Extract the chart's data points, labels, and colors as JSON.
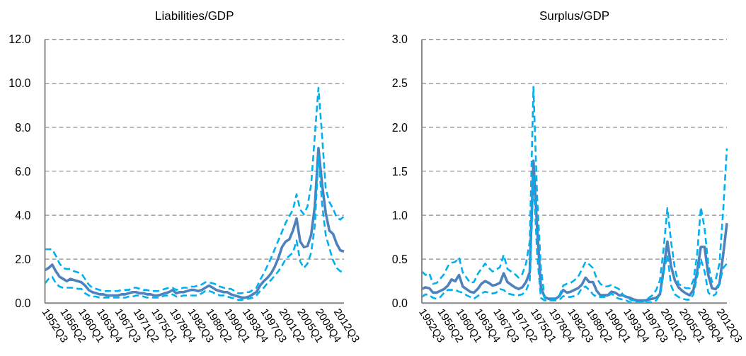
{
  "chart_data": [
    {
      "type": "line",
      "title": "Liabilities/GDP",
      "categories": [
        "1952Q3",
        null,
        null,
        null,
        null,
        "1956Q2",
        null,
        null,
        null,
        null,
        "1960Q1",
        null,
        null,
        null,
        null,
        "1963Q4",
        null,
        null,
        null,
        null,
        "1967Q3",
        null,
        null,
        null,
        null,
        "1971Q2",
        null,
        null,
        null,
        null,
        "1975Q1",
        null,
        null,
        null,
        null,
        "1978Q4",
        null,
        null,
        null,
        null,
        "1982Q3",
        null,
        null,
        null,
        null,
        "1986Q2",
        null,
        null,
        null,
        null,
        "1990Q1",
        null,
        null,
        null,
        null,
        "1993Q4",
        null,
        null,
        null,
        null,
        "1997Q3",
        null,
        null,
        null,
        null,
        "2001Q2",
        null,
        null,
        null,
        null,
        "2005Q1",
        null,
        null,
        null,
        null,
        "2008Q4",
        null,
        null,
        null,
        null,
        "2012Q3",
        null,
        null
      ],
      "series": [
        {
          "color": "#4f81bd",
          "line_style": "solid",
          "values": [
            1.5,
            1.6,
            1.75,
            1.45,
            1.2,
            1.1,
            1.0,
            1.1,
            1.05,
            1.0,
            0.95,
            0.8,
            0.6,
            0.5,
            0.45,
            0.4,
            0.4,
            0.35,
            0.35,
            0.35,
            0.35,
            0.4,
            0.4,
            0.45,
            0.5,
            0.5,
            0.45,
            0.45,
            0.4,
            0.4,
            0.35,
            0.35,
            0.4,
            0.45,
            0.5,
            0.6,
            0.45,
            0.5,
            0.5,
            0.55,
            0.6,
            0.6,
            0.55,
            0.6,
            0.7,
            0.8,
            0.7,
            0.6,
            0.55,
            0.5,
            0.5,
            0.4,
            0.35,
            0.3,
            0.25,
            0.25,
            0.3,
            0.4,
            0.5,
            0.8,
            1.0,
            1.15,
            1.35,
            1.65,
            2.05,
            2.55,
            2.8,
            2.9,
            3.3,
            3.85,
            2.8,
            2.55,
            2.6,
            3.1,
            4.4,
            7.05,
            5.4,
            4.1,
            3.3,
            3.15,
            2.7,
            2.4,
            2.35
          ]
        },
        {
          "color": "#00b0f0",
          "line_style": "dashed",
          "values": [
            2.45,
            2.45,
            2.45,
            2.15,
            1.8,
            1.6,
            1.55,
            1.55,
            1.45,
            1.4,
            1.35,
            1.1,
            0.85,
            0.7,
            0.65,
            0.6,
            0.55,
            0.55,
            0.55,
            0.55,
            0.55,
            0.6,
            0.6,
            0.6,
            0.7,
            0.7,
            0.65,
            0.6,
            0.6,
            0.55,
            0.55,
            0.55,
            0.6,
            0.65,
            0.7,
            0.7,
            0.6,
            0.65,
            0.7,
            0.7,
            0.75,
            0.75,
            0.8,
            0.85,
            0.95,
            0.95,
            0.9,
            0.85,
            0.75,
            0.7,
            0.65,
            0.65,
            0.55,
            0.45,
            0.45,
            0.5,
            0.5,
            0.6,
            0.7,
            1.05,
            1.35,
            1.7,
            2.05,
            2.45,
            2.85,
            3.25,
            3.65,
            3.95,
            4.25,
            4.95,
            4.25,
            4.05,
            4.4,
            5.4,
            7.6,
            9.8,
            7.6,
            5.2,
            4.6,
            4.3,
            3.9,
            3.8,
            3.95
          ]
        },
        {
          "color": "#00b0f0",
          "line_style": "dashed",
          "values": [
            0.9,
            1.1,
            1.2,
            0.9,
            0.75,
            0.7,
            0.7,
            0.7,
            0.7,
            0.65,
            0.65,
            0.45,
            0.35,
            0.3,
            0.3,
            0.25,
            0.25,
            0.25,
            0.25,
            0.25,
            0.25,
            0.25,
            0.25,
            0.3,
            0.3,
            0.35,
            0.35,
            0.3,
            0.25,
            0.25,
            0.25,
            0.25,
            0.3,
            0.35,
            0.35,
            0.4,
            0.3,
            0.3,
            0.35,
            0.35,
            0.35,
            0.35,
            0.35,
            0.45,
            0.55,
            0.55,
            0.5,
            0.4,
            0.35,
            0.35,
            0.3,
            0.25,
            0.2,
            0.15,
            0.15,
            0.2,
            0.2,
            0.25,
            0.35,
            0.55,
            0.7,
            0.9,
            1.05,
            1.25,
            1.45,
            1.7,
            2.0,
            2.15,
            2.3,
            2.85,
            1.9,
            1.6,
            1.8,
            2.3,
            3.5,
            6.7,
            4.5,
            3.1,
            2.5,
            1.95,
            1.6,
            1.45,
            1.4
          ]
        }
      ],
      "ylim": [
        0,
        12
      ],
      "yticks": [
        {
          "value": 0,
          "label": "0.0"
        },
        {
          "value": 2,
          "label": "2.0"
        },
        {
          "value": 4,
          "label": "4.0"
        },
        {
          "value": 6,
          "label": "6.0"
        },
        {
          "value": 8,
          "label": "8.0"
        },
        {
          "value": 10,
          "label": "10.0"
        },
        {
          "value": 12,
          "label": "12.0"
        }
      ],
      "grid": "y"
    },
    {
      "type": "line",
      "title": "Surplus/GDP",
      "categories": [
        "1952Q3",
        null,
        null,
        null,
        null,
        "1956Q2",
        null,
        null,
        null,
        null,
        "1960Q1",
        null,
        null,
        null,
        null,
        "1963Q4",
        null,
        null,
        null,
        null,
        "1967Q3",
        null,
        null,
        null,
        null,
        "1971Q2",
        null,
        null,
        null,
        null,
        "1975Q1",
        null,
        null,
        null,
        null,
        "1978Q4",
        null,
        null,
        null,
        null,
        "1982Q3",
        null,
        null,
        null,
        null,
        "1986Q2",
        null,
        null,
        null,
        null,
        "1990Q1",
        null,
        null,
        null,
        null,
        "1993Q4",
        null,
        null,
        null,
        null,
        "1997Q3",
        null,
        null,
        null,
        null,
        "2001Q2",
        null,
        null,
        null,
        null,
        "2005Q1",
        null,
        null,
        null,
        null,
        "2008Q4",
        null,
        null,
        null,
        null,
        "2012Q3",
        null,
        null
      ],
      "series": [
        {
          "color": "#4f81bd",
          "line_style": "solid",
          "values": [
            0.16,
            0.18,
            0.17,
            0.12,
            0.12,
            0.14,
            0.16,
            0.2,
            0.27,
            0.25,
            0.32,
            0.19,
            0.16,
            0.13,
            0.12,
            0.16,
            0.22,
            0.25,
            0.23,
            0.2,
            0.21,
            0.23,
            0.34,
            0.24,
            0.21,
            0.18,
            0.16,
            0.18,
            0.24,
            0.35,
            1.62,
            0.85,
            0.18,
            0.07,
            0.05,
            0.05,
            0.05,
            0.08,
            0.15,
            0.12,
            0.13,
            0.15,
            0.17,
            0.21,
            0.29,
            0.24,
            0.24,
            0.14,
            0.09,
            0.09,
            0.09,
            0.13,
            0.12,
            0.09,
            0.09,
            0.07,
            0.06,
            0.04,
            0.03,
            0.03,
            0.03,
            0.04,
            0.05,
            0.06,
            0.1,
            0.38,
            0.7,
            0.42,
            0.26,
            0.18,
            0.14,
            0.11,
            0.09,
            0.15,
            0.36,
            0.64,
            0.64,
            0.32,
            0.17,
            0.16,
            0.22,
            0.55,
            0.91
          ]
        },
        {
          "color": "#00b0f0",
          "line_style": "dashed",
          "values": [
            0.36,
            0.32,
            0.34,
            0.22,
            0.23,
            0.28,
            0.33,
            0.42,
            0.46,
            0.47,
            0.52,
            0.35,
            0.29,
            0.23,
            0.24,
            0.33,
            0.39,
            0.45,
            0.4,
            0.36,
            0.38,
            0.41,
            0.55,
            0.39,
            0.36,
            0.33,
            0.29,
            0.33,
            0.45,
            0.7,
            2.46,
            1.2,
            0.4,
            0.06,
            0.03,
            0.04,
            0.06,
            0.09,
            0.2,
            0.22,
            0.23,
            0.26,
            0.3,
            0.38,
            0.47,
            0.44,
            0.4,
            0.28,
            0.22,
            0.19,
            0.19,
            0.21,
            0.18,
            0.16,
            0.1,
            0.06,
            0.04,
            0.03,
            0.02,
            0.01,
            0.03,
            0.06,
            0.09,
            0.15,
            0.26,
            0.62,
            1.08,
            0.7,
            0.4,
            0.22,
            0.19,
            0.17,
            0.17,
            0.26,
            0.55,
            1.09,
            0.85,
            0.44,
            0.24,
            0.27,
            0.45,
            1.05,
            1.76
          ]
        },
        {
          "color": "#00b0f0",
          "line_style": "dashed",
          "values": [
            0.07,
            0.1,
            0.09,
            0.06,
            0.05,
            0.07,
            0.12,
            0.15,
            0.15,
            0.15,
            0.13,
            0.12,
            0.09,
            0.07,
            0.05,
            0.08,
            0.11,
            0.13,
            0.12,
            0.11,
            0.12,
            0.16,
            0.15,
            0.11,
            0.1,
            0.09,
            0.09,
            0.1,
            0.14,
            0.25,
            1.45,
            0.55,
            0.06,
            0.03,
            0.03,
            0.03,
            0.03,
            0.04,
            0.08,
            0.07,
            0.07,
            0.08,
            0.1,
            0.17,
            0.19,
            0.15,
            0.1,
            0.07,
            0.07,
            0.07,
            0.08,
            0.11,
            0.07,
            0.05,
            0.04,
            0.03,
            0.01,
            0.01,
            0.01,
            0.01,
            0.01,
            0.01,
            0.01,
            0.03,
            0.1,
            0.35,
            0.55,
            0.2,
            0.1,
            0.07,
            0.05,
            0.04,
            0.04,
            0.1,
            0.3,
            0.5,
            0.36,
            0.12,
            0.08,
            0.1,
            0.22,
            0.4,
            0.45
          ]
        }
      ],
      "ylim": [
        0,
        3
      ],
      "yticks": [
        {
          "value": 0,
          "label": "0.0"
        },
        {
          "value": 0.5,
          "label": "0.5"
        },
        {
          "value": 1,
          "label": "1.0"
        },
        {
          "value": 1.5,
          "label": "1.5"
        },
        {
          "value": 2,
          "label": "2.0"
        },
        {
          "value": 2.5,
          "label": "2.5"
        },
        {
          "value": 3,
          "label": "3.0"
        }
      ],
      "grid": "y"
    }
  ]
}
